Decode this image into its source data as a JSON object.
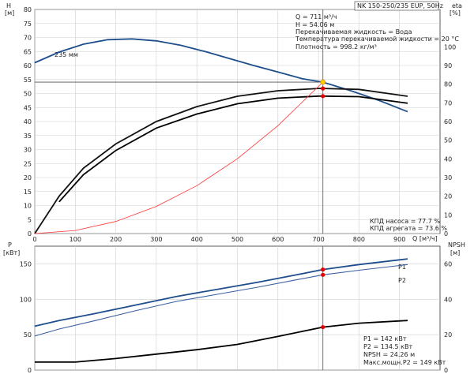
{
  "title": "NK 150-250/235 EUP, 50Hz",
  "upper": {
    "left_axis_label": "H",
    "left_axis_unit": "[м]",
    "right_axis_label": "eta",
    "right_axis_unit": "[%]",
    "x_axis_label": "Q [м³/ч]",
    "impeller_label": "235 мм",
    "info_lines": [
      "Q = 711 м³/ч",
      "H = 54.06 м",
      "Перекачиваемая жидкость = Вода",
      "Температура перекачиваемой жидкости = 20 °C",
      "Плотность = 998.2 кг/м³"
    ],
    "eff_lines": [
      "КПД насоса = 77.7 %",
      "КПД агрегата = 73.6 %"
    ]
  },
  "lower": {
    "left_axis_label": "P",
    "left_axis_unit": "[кВт]",
    "right_axis_label": "NPSH",
    "right_axis_unit": "[м]",
    "p1_label": "P1",
    "p2_label": "P2",
    "info_lines": [
      "P1 = 142 кВт",
      "P2 = 134.5 кВт",
      "NPSH = 24.26 м",
      "Макс.мощн.P2 = 149 кВт"
    ]
  },
  "chart_data": [
    {
      "type": "line",
      "panel": "upper",
      "x_ticks": [
        0,
        100,
        200,
        300,
        400,
        500,
        600,
        700,
        800,
        900
      ],
      "ylim_left": [
        0,
        80
      ],
      "y_ticks_left": [
        0,
        5,
        10,
        15,
        20,
        25,
        30,
        35,
        40,
        45,
        50,
        55,
        60,
        65,
        70,
        75,
        80
      ],
      "ylim_right": [
        0,
        120
      ],
      "y_ticks_right": [
        0,
        10,
        20,
        30,
        40,
        50,
        60,
        70,
        80,
        90,
        100
      ],
      "xlim": [
        0,
        1000
      ],
      "series": [
        {
          "key": "head",
          "axis": "left",
          "color": "#1f4e8c",
          "x": [
            0,
            60,
            120,
            180,
            240,
            300,
            360,
            420,
            480,
            540,
            600,
            660,
            711,
            780,
            850,
            920
          ],
          "y": [
            61,
            64.8,
            67.6,
            69.2,
            69.5,
            68.8,
            67.2,
            65,
            62.5,
            60,
            57.7,
            55.3,
            54.06,
            51,
            47.5,
            43.5
          ]
        },
        {
          "key": "eta_pump",
          "axis": "right",
          "color": "#111111",
          "x": [
            0,
            60,
            120,
            200,
            300,
            400,
            500,
            600,
            700,
            711,
            800,
            920
          ],
          "y": [
            0,
            20,
            35,
            48,
            60,
            68,
            73.5,
            76.5,
            77.7,
            77.7,
            77.2,
            73.5
          ]
        },
        {
          "key": "eta_unit",
          "axis": "right",
          "color": "#000000",
          "x": [
            60,
            120,
            200,
            300,
            400,
            500,
            600,
            700,
            711,
            800,
            920
          ],
          "y": [
            17,
            31.5,
            44.5,
            56.5,
            64,
            69.5,
            72.5,
            73.6,
            73.6,
            73.3,
            69.8
          ]
        },
        {
          "key": "system",
          "axis": "left",
          "color": "#ff3333",
          "x": [
            0,
            100,
            200,
            300,
            400,
            500,
            600,
            711
          ],
          "y": [
            0,
            1.1,
            4.3,
            9.7,
            17.1,
            26.7,
            38.5,
            54.06
          ]
        }
      ],
      "operating_point": {
        "q": 711,
        "h": 54.06,
        "eta_pump": 77.7,
        "eta_unit": 73.6
      }
    },
    {
      "type": "line",
      "panel": "lower",
      "x_ticks": [
        0,
        100,
        200,
        300,
        400,
        500,
        600,
        700,
        800,
        900
      ],
      "xlim": [
        0,
        1000
      ],
      "ylim_left": [
        0,
        175
      ],
      "y_ticks_left": [
        0,
        50,
        100,
        150
      ],
      "ylim_right": [
        0,
        70
      ],
      "y_ticks_right": [
        0,
        20,
        40,
        60
      ],
      "series": [
        {
          "key": "P1",
          "name": "P1",
          "axis": "left",
          "color": "#1f4e8c",
          "x": [
            0,
            60,
            150,
            250,
            350,
            450,
            550,
            650,
            711,
            800,
            920
          ],
          "y": [
            62,
            70,
            80,
            92,
            104,
            114,
            124,
            135,
            142,
            149,
            157
          ]
        },
        {
          "key": "P2",
          "name": "P2",
          "axis": "left",
          "color": "#3a5fa0",
          "x": [
            0,
            60,
            150,
            250,
            350,
            450,
            550,
            650,
            711,
            800,
            920
          ],
          "y": [
            48,
            58,
            70,
            84,
            97,
            107,
            117,
            128,
            134.5,
            141,
            149
          ]
        },
        {
          "key": "NPSH",
          "axis": "right",
          "color": "#000000",
          "x": [
            0,
            100,
            200,
            300,
            400,
            500,
            600,
            711,
            800,
            920
          ],
          "y": [
            4.5,
            4.5,
            6.5,
            9,
            11.5,
            14.5,
            19,
            24.26,
            26.5,
            28
          ]
        }
      ],
      "operating_point": {
        "q": 711,
        "p1": 142,
        "p2": 134.5,
        "npsh": 24.26
      }
    }
  ]
}
